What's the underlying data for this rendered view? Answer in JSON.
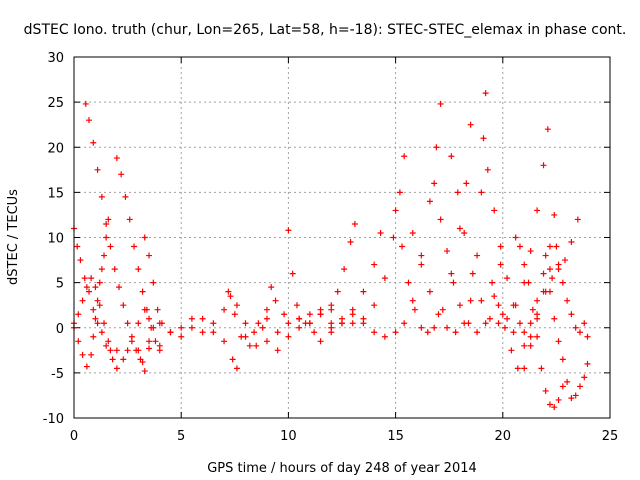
{
  "chart_data": {
    "type": "scatter",
    "title": "dSTEC Iono. truth (chur, Lon=265, Lat=58, h=-18): STEC-STEC_elemax in phase cont.",
    "xlabel": "GPS time / hours of day 248 of year 2014",
    "ylabel": "dSTEC  / TECUs",
    "xlim": [
      0,
      25
    ],
    "ylim": [
      -10,
      30
    ],
    "xticks": [
      0,
      5,
      10,
      15,
      20,
      25
    ],
    "yticks": [
      -10,
      -5,
      0,
      5,
      10,
      15,
      20,
      25,
      30
    ],
    "grid": true,
    "marker": "+",
    "color": "#ff0000",
    "series": [
      {
        "values": [
          [
            0.0,
            11.0
          ],
          [
            0.15,
            9.0
          ],
          [
            0.3,
            7.5
          ],
          [
            0.5,
            5.5
          ],
          [
            0.7,
            4.0
          ],
          [
            0.9,
            2.0
          ],
          [
            1.1,
            0.5
          ],
          [
            1.3,
            -0.5
          ],
          [
            1.5,
            -2.0
          ],
          [
            1.7,
            -2.5
          ],
          [
            2.0,
            -2.5
          ],
          [
            2.5,
            -2.5
          ],
          [
            3.0,
            -2.5
          ],
          [
            3.5,
            -2.3
          ]
        ]
      },
      {
        "values": [
          [
            0.0,
            0.5
          ],
          [
            0.2,
            -1.5
          ],
          [
            0.4,
            -3.0
          ],
          [
            0.6,
            -4.3
          ],
          [
            0.8,
            -3.0
          ],
          [
            0.9,
            -1.0
          ],
          [
            1.0,
            1.0
          ],
          [
            1.1,
            3.0
          ],
          [
            1.2,
            5.0
          ],
          [
            1.3,
            6.5
          ],
          [
            1.4,
            8.0
          ],
          [
            1.5,
            10.0
          ],
          [
            1.6,
            12.0
          ]
        ]
      },
      {
        "values": [
          [
            0.0,
            0.0
          ],
          [
            0.2,
            1.5
          ],
          [
            0.4,
            3.0
          ],
          [
            0.6,
            4.5
          ],
          [
            0.8,
            5.5
          ],
          [
            1.0,
            4.5
          ],
          [
            1.2,
            2.5
          ],
          [
            1.4,
            0.5
          ],
          [
            1.6,
            -1.5
          ],
          [
            1.8,
            -3.5
          ],
          [
            2.0,
            -4.5
          ],
          [
            2.3,
            -3.5
          ],
          [
            2.7,
            -1.5
          ],
          [
            3.0,
            0.5
          ],
          [
            3.3,
            2.0
          ],
          [
            3.5,
            1.0
          ],
          [
            3.7,
            0.0
          ],
          [
            4.0,
            0.5
          ]
        ]
      },
      {
        "values": [
          [
            0.55,
            24.8
          ],
          [
            0.7,
            23.0
          ],
          [
            0.9,
            20.5
          ],
          [
            1.1,
            17.5
          ],
          [
            1.3,
            14.5
          ],
          [
            1.5,
            11.5
          ],
          [
            1.7,
            9.0
          ],
          [
            1.9,
            6.5
          ],
          [
            2.1,
            4.5
          ],
          [
            2.3,
            2.5
          ],
          [
            2.5,
            0.5
          ],
          [
            2.7,
            -1.0
          ],
          [
            2.9,
            -2.5
          ],
          [
            3.1,
            -3.5
          ],
          [
            3.3,
            -4.8
          ]
        ]
      },
      {
        "values": [
          [
            2.0,
            18.8
          ],
          [
            2.2,
            17.0
          ],
          [
            2.4,
            14.5
          ],
          [
            2.6,
            12.0
          ],
          [
            2.8,
            9.0
          ],
          [
            3.0,
            6.5
          ],
          [
            3.2,
            4.0
          ],
          [
            3.4,
            2.0
          ],
          [
            3.6,
            0.0
          ],
          [
            3.8,
            -1.5
          ],
          [
            4.0,
            -2.5
          ]
        ]
      },
      {
        "values": [
          [
            3.3,
            10.0
          ],
          [
            3.5,
            8.0
          ],
          [
            3.7,
            5.0
          ],
          [
            3.9,
            2.0
          ],
          [
            4.1,
            0.5
          ],
          [
            4.5,
            -0.5
          ],
          [
            5.0,
            0.0
          ],
          [
            5.5,
            1.0
          ],
          [
            6.0,
            -0.5
          ],
          [
            6.5,
            0.5
          ],
          [
            7.0,
            2.0
          ],
          [
            7.3,
            3.5
          ],
          [
            7.5,
            1.5
          ],
          [
            7.8,
            -1.0
          ],
          [
            8.2,
            -2.0
          ],
          [
            8.6,
            0.5
          ],
          [
            9.0,
            1.0
          ],
          [
            9.5,
            -0.5
          ],
          [
            10.0,
            0.5
          ],
          [
            10.5,
            1.0
          ],
          [
            11.0,
            1.5
          ],
          [
            11.5,
            2.0
          ],
          [
            12.0,
            2.5
          ]
        ]
      },
      {
        "values": [
          [
            3.2,
            -3.8
          ],
          [
            3.5,
            -1.5
          ],
          [
            4.0,
            -2.0
          ],
          [
            4.5,
            -0.5
          ],
          [
            5.0,
            -1.0
          ],
          [
            5.5,
            0.0
          ],
          [
            6.0,
            1.0
          ],
          [
            6.5,
            -0.5
          ],
          [
            7.0,
            -1.5
          ],
          [
            7.4,
            -3.5
          ],
          [
            7.6,
            -4.5
          ],
          [
            8.0,
            -1.0
          ],
          [
            8.5,
            -2.0
          ],
          [
            9.0,
            -1.5
          ],
          [
            9.5,
            -2.5
          ],
          [
            10.0,
            -1.0
          ],
          [
            10.5,
            0.0
          ],
          [
            11.0,
            0.5
          ],
          [
            11.5,
            -1.5
          ],
          [
            12.0,
            -0.5
          ]
        ]
      },
      {
        "values": [
          [
            7.2,
            4.0
          ],
          [
            7.6,
            2.5
          ],
          [
            8.0,
            0.5
          ],
          [
            8.4,
            -0.5
          ],
          [
            8.8,
            0.0
          ],
          [
            9.0,
            2.0
          ],
          [
            9.2,
            4.5
          ],
          [
            9.4,
            3.0
          ],
          [
            9.8,
            1.5
          ],
          [
            10.0,
            10.8
          ],
          [
            10.2,
            6.0
          ],
          [
            10.4,
            2.5
          ],
          [
            10.8,
            0.5
          ],
          [
            11.2,
            -0.5
          ]
        ]
      },
      {
        "values": [
          [
            10.5,
            1.0
          ],
          [
            11.0,
            0.5
          ],
          [
            11.5,
            1.5
          ],
          [
            12.0,
            2.0
          ],
          [
            12.3,
            4.0
          ],
          [
            12.6,
            6.5
          ],
          [
            12.9,
            9.5
          ],
          [
            13.1,
            11.5
          ]
        ]
      },
      {
        "values": [
          [
            11.5,
            1.5
          ],
          [
            12.0,
            0.5
          ],
          [
            12.5,
            1.0
          ],
          [
            13.0,
            2.0
          ],
          [
            13.5,
            4.0
          ],
          [
            14.0,
            7.0
          ],
          [
            14.3,
            10.5
          ]
        ]
      },
      {
        "values": [
          [
            12.0,
            0.0
          ],
          [
            12.5,
            0.5
          ],
          [
            13.0,
            0.5
          ],
          [
            13.5,
            1.0
          ],
          [
            14.0,
            2.5
          ],
          [
            14.5,
            5.5
          ],
          [
            14.9,
            10.0
          ],
          [
            15.2,
            15.0
          ],
          [
            15.4,
            19.0
          ]
        ]
      },
      {
        "values": [
          [
            12.5,
            0.5
          ],
          [
            13.0,
            1.5
          ],
          [
            13.5,
            0.5
          ],
          [
            14.0,
            -0.5
          ],
          [
            14.5,
            -1.0
          ],
          [
            15.0,
            -0.5
          ],
          [
            15.4,
            0.5
          ],
          [
            15.8,
            3.0
          ],
          [
            16.2,
            8.0
          ],
          [
            16.6,
            14.0
          ],
          [
            16.9,
            20.0
          ],
          [
            17.1,
            24.8
          ]
        ]
      },
      {
        "values": [
          [
            15.0,
            13.0
          ],
          [
            15.3,
            9.0
          ],
          [
            15.6,
            5.0
          ],
          [
            15.9,
            2.0
          ],
          [
            16.2,
            0.0
          ],
          [
            16.5,
            -0.5
          ],
          [
            16.8,
            0.0
          ],
          [
            17.2,
            2.0
          ],
          [
            17.6,
            6.0
          ],
          [
            18.0,
            11.0
          ],
          [
            18.3,
            16.0
          ],
          [
            18.5,
            22.5
          ]
        ]
      },
      {
        "values": [
          [
            15.8,
            10.5
          ],
          [
            16.2,
            7.0
          ],
          [
            16.6,
            4.0
          ],
          [
            17.0,
            1.5
          ],
          [
            17.4,
            0.0
          ],
          [
            17.8,
            -0.5
          ],
          [
            18.2,
            0.5
          ],
          [
            18.5,
            3.0
          ],
          [
            18.8,
            8.0
          ],
          [
            19.0,
            15.0
          ],
          [
            19.1,
            21.0
          ],
          [
            19.2,
            26.0
          ]
        ]
      },
      {
        "values": [
          [
            16.8,
            16.0
          ],
          [
            17.1,
            12.0
          ],
          [
            17.4,
            8.5
          ],
          [
            17.7,
            5.0
          ],
          [
            18.0,
            2.5
          ],
          [
            18.4,
            0.5
          ],
          [
            18.8,
            -0.5
          ],
          [
            19.2,
            0.5
          ],
          [
            19.6,
            3.5
          ],
          [
            19.9,
            7.0
          ]
        ]
      },
      {
        "values": [
          [
            17.6,
            19.0
          ],
          [
            17.9,
            15.0
          ],
          [
            18.2,
            10.5
          ],
          [
            18.6,
            6.0
          ],
          [
            19.0,
            3.0
          ],
          [
            19.4,
            1.0
          ],
          [
            19.8,
            0.5
          ],
          [
            20.2,
            1.0
          ],
          [
            20.6,
            2.5
          ],
          [
            21.0,
            5.0
          ],
          [
            21.3,
            8.5
          ],
          [
            21.6,
            13.0
          ],
          [
            21.9,
            18.0
          ],
          [
            22.1,
            22.0
          ]
        ]
      },
      {
        "values": [
          [
            19.3,
            17.5
          ],
          [
            19.6,
            13.0
          ],
          [
            19.9,
            9.0
          ],
          [
            20.2,
            5.5
          ],
          [
            20.5,
            2.5
          ],
          [
            20.8,
            0.5
          ],
          [
            21.0,
            -0.5
          ],
          [
            21.3,
            0.5
          ],
          [
            21.6,
            3.0
          ],
          [
            21.9,
            6.0
          ],
          [
            22.2,
            9.0
          ],
          [
            22.4,
            12.5
          ]
        ]
      },
      {
        "values": [
          [
            19.5,
            5.0
          ],
          [
            19.8,
            2.5
          ],
          [
            20.1,
            0.0
          ],
          [
            20.4,
            -2.5
          ],
          [
            20.7,
            -4.5
          ],
          [
            21.0,
            -4.5
          ],
          [
            21.3,
            -2.0
          ],
          [
            21.6,
            1.0
          ],
          [
            21.9,
            4.0
          ],
          [
            22.2,
            6.5
          ],
          [
            22.5,
            9.0
          ]
        ]
      },
      {
        "values": [
          [
            20.0,
            1.5
          ],
          [
            20.5,
            -0.5
          ],
          [
            21.0,
            -2.0
          ],
          [
            21.3,
            -1.0
          ],
          [
            21.6,
            1.5
          ],
          [
            22.0,
            4.0
          ],
          [
            22.3,
            5.5
          ],
          [
            22.6,
            6.5
          ],
          [
            22.9,
            7.5
          ],
          [
            23.2,
            9.5
          ],
          [
            23.5,
            12.0
          ]
        ]
      },
      {
        "values": [
          [
            20.6,
            10.0
          ],
          [
            20.8,
            9.0
          ],
          [
            21.0,
            7.0
          ],
          [
            21.2,
            5.0
          ],
          [
            21.4,
            2.0
          ],
          [
            21.6,
            -1.0
          ],
          [
            21.8,
            -4.5
          ],
          [
            22.0,
            -7.0
          ],
          [
            22.2,
            -8.5
          ],
          [
            22.4,
            -8.8
          ],
          [
            22.6,
            -8.0
          ],
          [
            22.8,
            -6.5
          ]
        ]
      },
      {
        "values": [
          [
            22.0,
            8.0
          ],
          [
            22.2,
            4.0
          ],
          [
            22.4,
            1.0
          ],
          [
            22.6,
            -1.5
          ],
          [
            22.8,
            -3.5
          ],
          [
            23.0,
            -6.0
          ],
          [
            23.2,
            -7.8
          ],
          [
            23.4,
            -7.5
          ],
          [
            23.6,
            -6.5
          ],
          [
            23.8,
            -5.5
          ],
          [
            23.95,
            -4.0
          ]
        ]
      },
      {
        "values": [
          [
            22.6,
            7.0
          ],
          [
            22.8,
            5.0
          ],
          [
            23.0,
            3.0
          ],
          [
            23.2,
            1.5
          ],
          [
            23.4,
            0.0
          ],
          [
            23.6,
            -0.5
          ],
          [
            23.8,
            0.5
          ],
          [
            23.95,
            -1.0
          ]
        ]
      }
    ]
  }
}
